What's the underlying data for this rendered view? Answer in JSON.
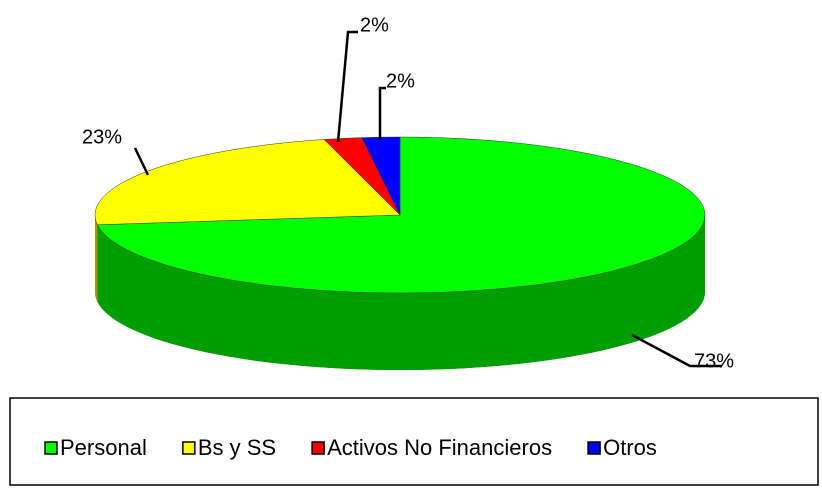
{
  "chart_data": {
    "type": "pie",
    "categories": [
      "Personal",
      "Bs y SS",
      "Activos No Financieros",
      "Otros"
    ],
    "values": [
      73,
      23,
      2,
      2
    ],
    "value_labels": [
      "73%",
      "23%",
      "2%",
      "2%"
    ],
    "colors": [
      "#00ff00",
      "#ffff00",
      "#ff0000",
      "#0000ff"
    ],
    "legend": "bottom"
  }
}
